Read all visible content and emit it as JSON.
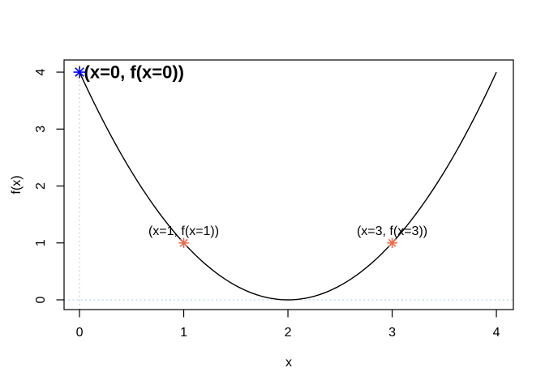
{
  "figure": {
    "background": "#ffffff",
    "type_hint": "R base-graphics plot"
  },
  "chart_data": {
    "type": "line",
    "title": "",
    "xlabel": "x",
    "ylabel": "f(x)",
    "curve": {
      "expr": "f(x) = (x-2)^2",
      "fn_js": "(x-2)*(x-2)",
      "x_from": 0,
      "x_to": 4,
      "color": "#000000"
    },
    "xlim": [
      -0.148,
      4.163
    ],
    "ylim": [
      -0.171,
      4.214
    ],
    "x_ticks": [
      0,
      1,
      2,
      3,
      4
    ],
    "y_ticks": [
      0,
      1,
      2,
      3,
      4
    ],
    "grid": false,
    "legend": null,
    "colors": {
      "frame": "#000000",
      "reference_line": "#add8e6",
      "point_blue": "#0000ff",
      "point_orange": "#ed6a4c"
    },
    "reference_lines": [
      {
        "orientation": "vertical",
        "x": 0,
        "y_from": -0.171,
        "y_to": 4,
        "color": "#add8e6",
        "style": "dotted"
      },
      {
        "orientation": "horizontal",
        "y": 0,
        "x_from": -0.148,
        "x_to": 4.163,
        "color": "#add8e6",
        "style": "dotted"
      }
    ],
    "points": [
      {
        "x": 0,
        "y": 4,
        "marker": "asterisk",
        "color": "#0000ff",
        "radius": 7.5,
        "label": "(x=0, f(x=0))",
        "label_position": "right",
        "label_bold": true
      },
      {
        "x": 1,
        "y": 1,
        "marker": "asterisk",
        "color": "#ed6a4c",
        "radius": 6.2,
        "label": "(x=1, f(x=1))",
        "label_position": "above",
        "label_bold": false
      },
      {
        "x": 3,
        "y": 1,
        "marker": "asterisk",
        "color": "#ed6a4c",
        "radius": 6.2,
        "label": "(x=3, f(x=3))",
        "label_position": "above",
        "label_bold": false
      }
    ]
  }
}
